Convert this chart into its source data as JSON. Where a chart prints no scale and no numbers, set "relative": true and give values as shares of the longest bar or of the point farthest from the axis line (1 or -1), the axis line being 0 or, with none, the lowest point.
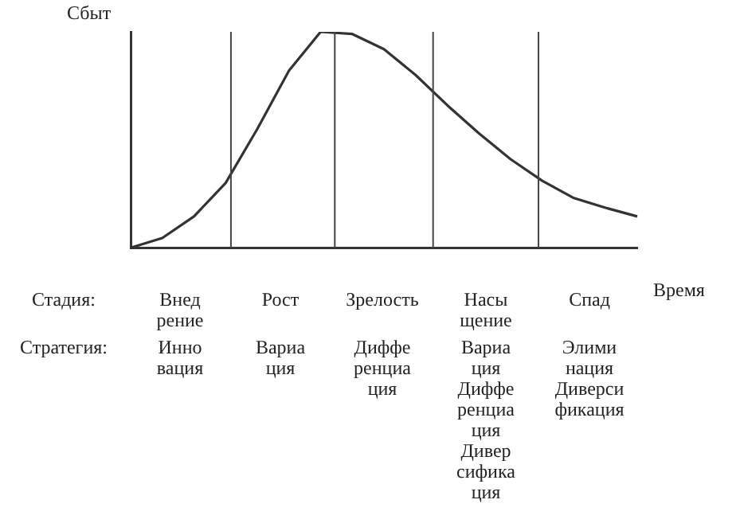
{
  "chart_data": {
    "type": "line",
    "relative": true,
    "xlabel": "Время",
    "ylabel": "Сбыт",
    "grid": false,
    "legend": false,
    "marker": "none",
    "line_style": "solid",
    "categories": [
      null,
      null,
      null,
      null,
      null,
      null,
      null,
      null,
      null,
      null,
      null,
      null,
      null,
      null,
      null,
      null,
      null
    ],
    "series": [
      {
        "color": "#333333",
        "values": [
          0,
          0.045,
          0.145,
          0.3,
          0.55,
          0.82,
          1,
          0.99,
          0.92,
          0.8,
          0.66,
          0.53,
          0.41,
          0.31,
          0.23,
          0.185,
          0.145
        ]
      }
    ],
    "annotations": [
      "Стадия:",
      "Внед\nрение",
      "Рост",
      "Зрелость",
      "Насы\nщение",
      "Спад",
      "Стратегия:",
      "Инно\nвация",
      "Вариа\nция",
      "Диффе\nренциа\nция",
      "Вариа\nция\nДиффе\nренциа\nция\nДивер\nсифика\nция",
      "Элими\nнация\nДиверси\nфикация"
    ]
  }
}
